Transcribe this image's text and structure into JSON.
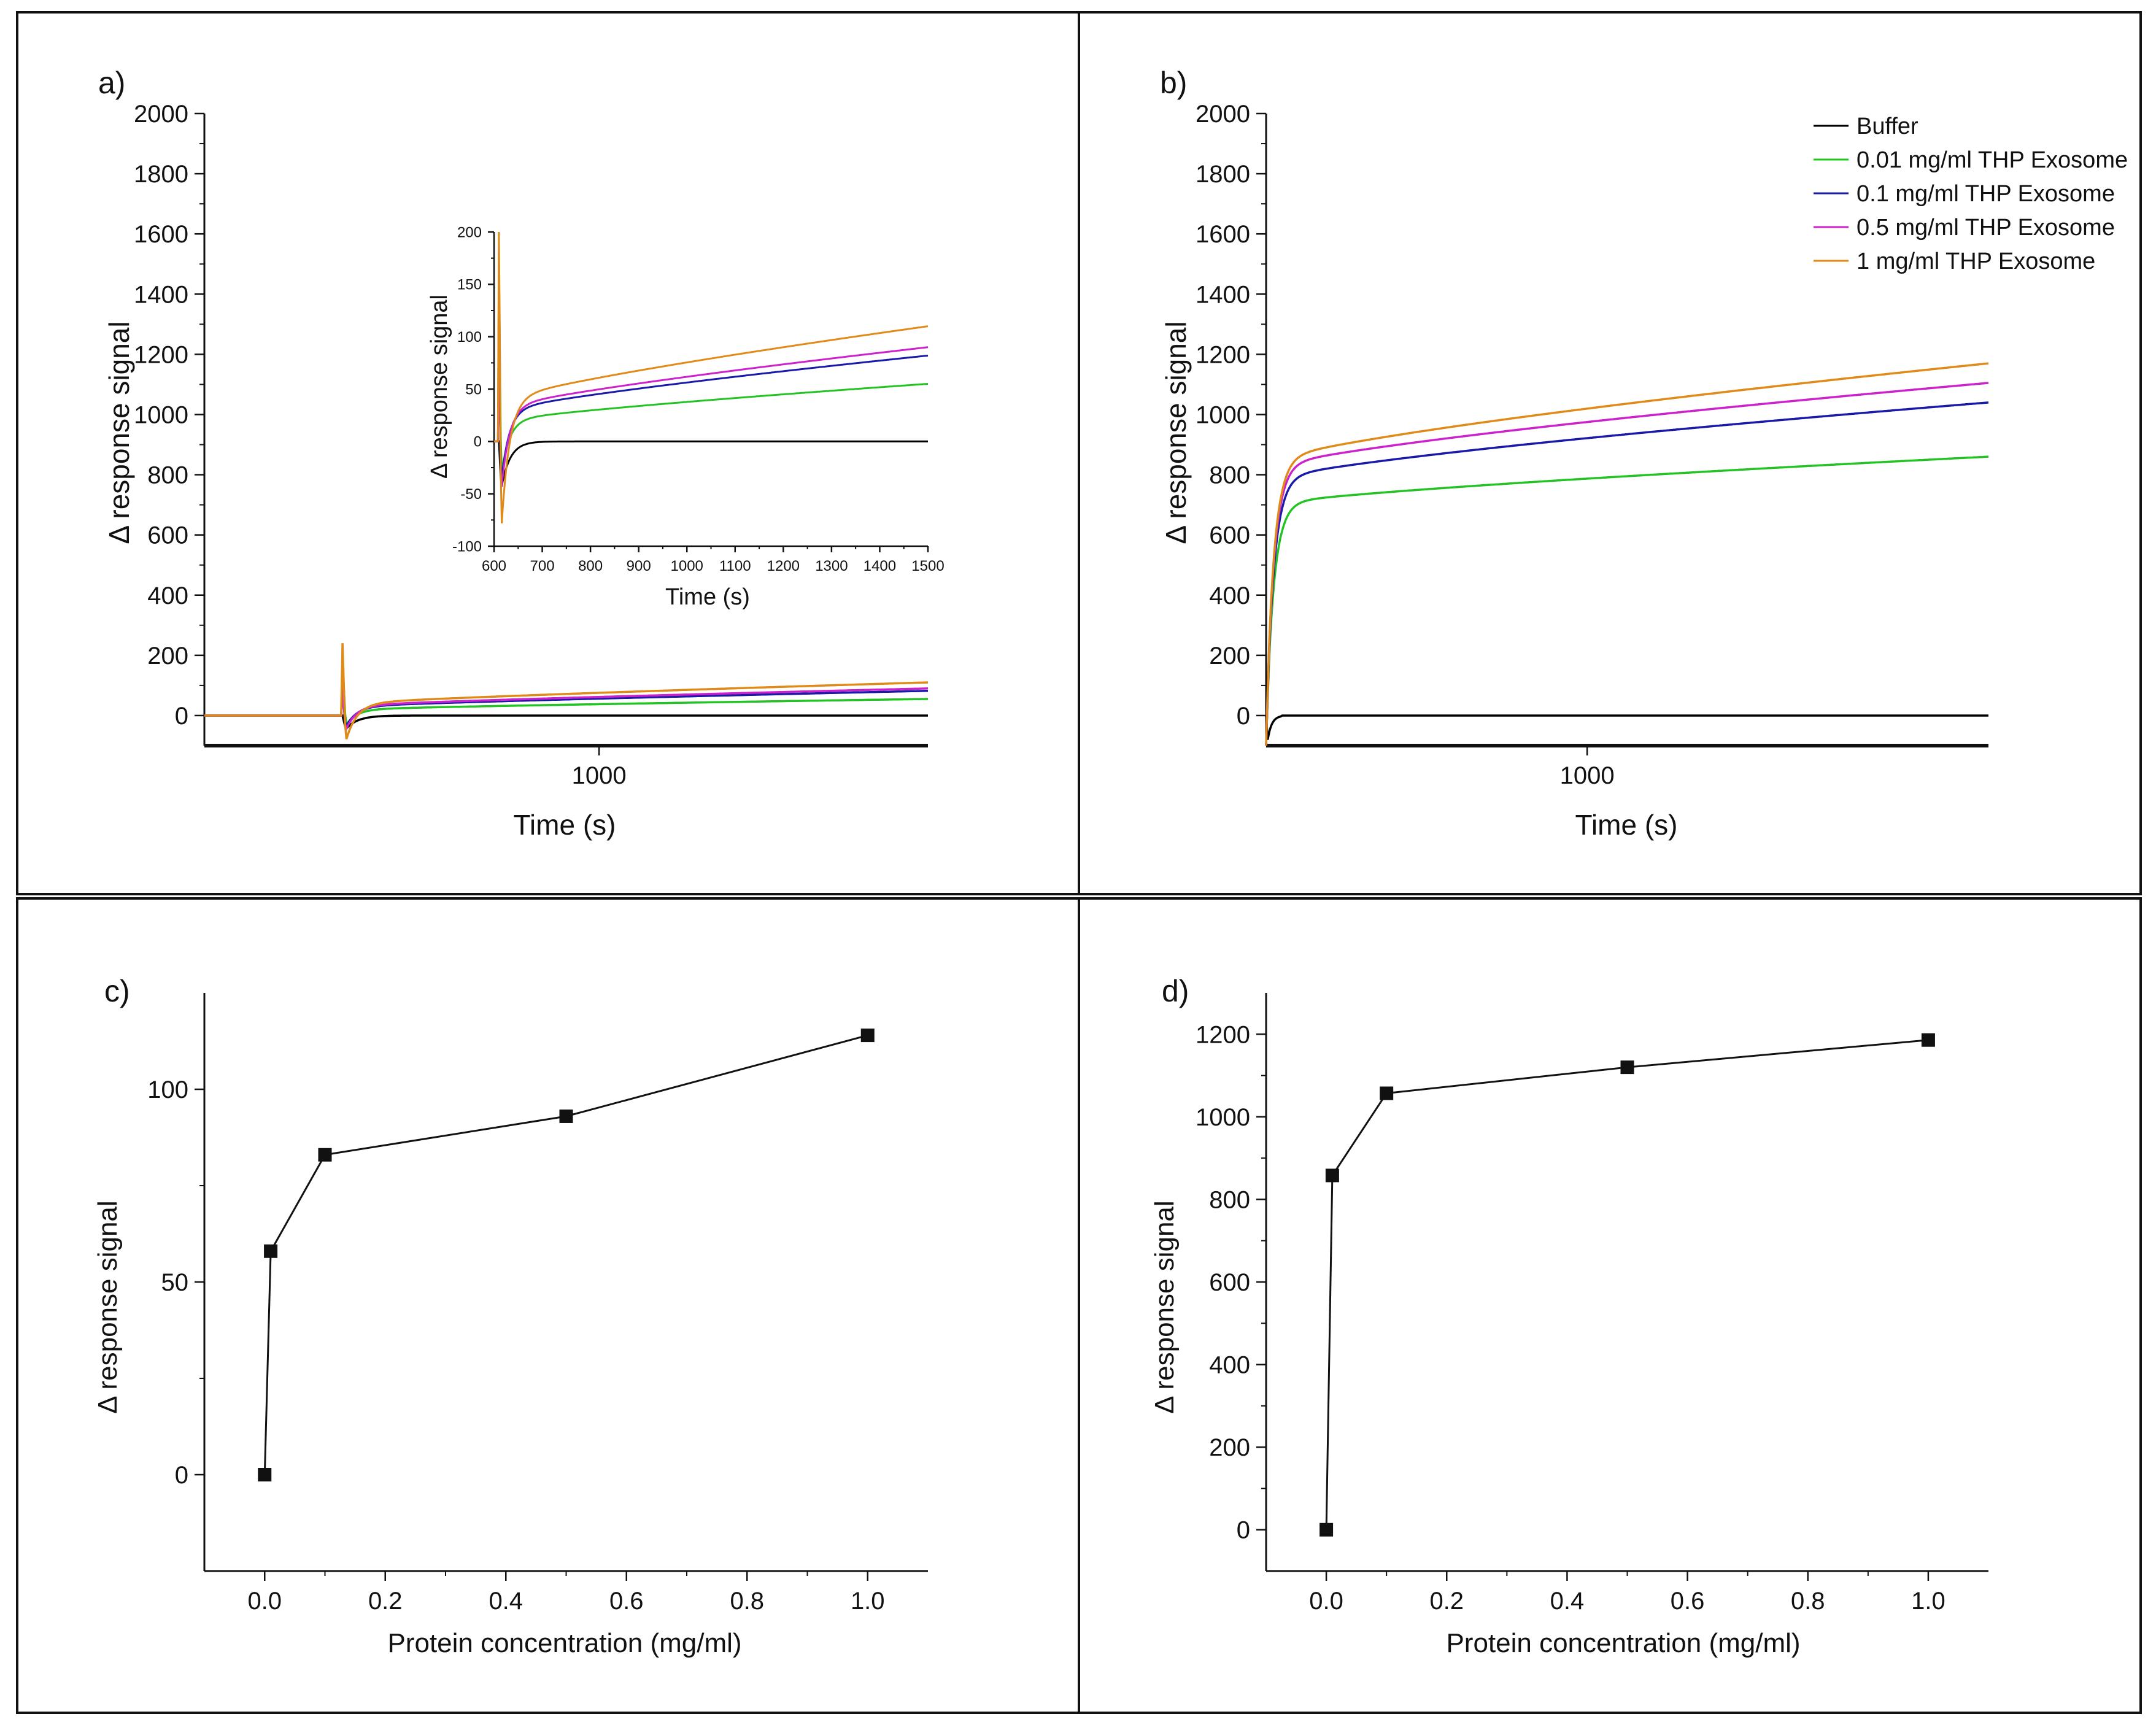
{
  "figure": {
    "panel_labels": [
      "a)",
      "b)",
      "c)",
      "d)"
    ]
  },
  "legend": {
    "entries": [
      {
        "label": "Buffer",
        "color": "#000000"
      },
      {
        "label": "0.01 mg/ml THP Exosome",
        "color": "#22c322"
      },
      {
        "label": "0.1 mg/ml THP Exosome",
        "color": "#1a1aa8"
      },
      {
        "label": "0.5 mg/ml THP Exosome",
        "color": "#cc22cc"
      },
      {
        "label": "1 mg/ml THP Exosome",
        "color": "#e08a1a"
      }
    ]
  },
  "chart_data": [
    {
      "id": "a",
      "type": "line",
      "panel_label": "a)",
      "xlabel": "Time (s)",
      "ylabel": "Δ response signal",
      "xlim": [
        400,
        1500
      ],
      "ylim": [
        -100,
        2000
      ],
      "x_ticks": [
        1000
      ],
      "y_ticks": [
        0,
        200,
        400,
        600,
        800,
        1000,
        1200,
        1400,
        1600,
        1800,
        2000
      ],
      "injection_time": 610,
      "series": [
        {
          "name": "Buffer",
          "color": "#000000",
          "plateau": 0,
          "spike": 0,
          "dip": -45
        },
        {
          "name": "0.01 mg/ml THP Exosome",
          "color": "#22c322",
          "plateau": 55,
          "spike": 180,
          "dip": -40
        },
        {
          "name": "0.1 mg/ml THP Exosome",
          "color": "#1a1aa8",
          "plateau": 82,
          "spike": 90,
          "dip": -50
        },
        {
          "name": "0.5 mg/ml THP Exosome",
          "color": "#cc22cc",
          "plateau": 90,
          "spike": 95,
          "dip": -60
        },
        {
          "name": "1 mg/ml THP Exosome",
          "color": "#e08a1a",
          "plateau": 110,
          "spike": 240,
          "dip": -100
        }
      ],
      "inset": {
        "xlabel": "Time (s)",
        "ylabel": "Δ response signal",
        "xlim": [
          600,
          1500
        ],
        "ylim": [
          -100,
          200
        ],
        "x_ticks": [
          600,
          700,
          800,
          900,
          1000,
          1100,
          1200,
          1300,
          1400,
          1500
        ],
        "y_ticks": [
          -100,
          -50,
          0,
          50,
          100,
          150,
          200
        ]
      }
    },
    {
      "id": "b",
      "type": "line",
      "panel_label": "b)",
      "xlabel": "Time (s)",
      "ylabel": "Δ response signal",
      "xlim": [
        600,
        1500
      ],
      "ylim": [
        -100,
        2000
      ],
      "x_ticks": [
        1000
      ],
      "y_ticks": [
        0,
        200,
        400,
        600,
        800,
        1000,
        1200,
        1400,
        1600,
        1800,
        2000
      ],
      "injection_time": 600,
      "series": [
        {
          "name": "Buffer",
          "color": "#000000",
          "plateau": 0,
          "knee": 0
        },
        {
          "name": "0.01 mg/ml THP Exosome",
          "color": "#22c322",
          "plateau": 860,
          "knee": 700
        },
        {
          "name": "0.1 mg/ml THP Exosome",
          "color": "#1a1aa8",
          "plateau": 1040,
          "knee": 780
        },
        {
          "name": "0.5 mg/ml THP Exosome",
          "color": "#cc22cc",
          "plateau": 1105,
          "knee": 820
        },
        {
          "name": "1 mg/ml THP Exosome",
          "color": "#e08a1a",
          "plateau": 1170,
          "knee": 840
        }
      ]
    },
    {
      "id": "c",
      "type": "line",
      "panel_label": "c)",
      "xlabel": "Protein concentration (mg/ml)",
      "ylabel": "Δ response signal",
      "xlim": [
        -0.1,
        1.1
      ],
      "ylim": [
        -25,
        125
      ],
      "x_ticks": [
        0.0,
        0.2,
        0.4,
        0.6,
        0.8,
        1.0
      ],
      "x_tick_labels": [
        "0.0",
        "0.2",
        "0.4",
        "0.6",
        "0.8",
        "1.0"
      ],
      "y_ticks": [
        0,
        50,
        100
      ],
      "y_tick_labels": [
        "0",
        "50",
        "100"
      ],
      "x": [
        0,
        0.01,
        0.1,
        0.5,
        1.0
      ],
      "y": [
        0,
        58,
        83,
        93,
        114
      ]
    },
    {
      "id": "d",
      "type": "line",
      "panel_label": "d)",
      "xlabel": "Protein concentration (mg/ml)",
      "ylabel": "Δ response signal",
      "xlim": [
        -0.1,
        1.1
      ],
      "ylim": [
        -100,
        1300
      ],
      "x_ticks": [
        0.0,
        0.2,
        0.4,
        0.6,
        0.8,
        1.0
      ],
      "x_tick_labels": [
        "0.0",
        "0.2",
        "0.4",
        "0.6",
        "0.8",
        "1.0"
      ],
      "y_ticks": [
        0,
        200,
        400,
        600,
        800,
        1000,
        1200
      ],
      "y_tick_labels": [
        "0",
        "200",
        "400",
        "600",
        "800",
        "1000",
        "1200"
      ],
      "x": [
        0,
        0.01,
        0.1,
        0.5,
        1.0
      ],
      "y": [
        0,
        858,
        1057,
        1120,
        1186
      ]
    }
  ]
}
